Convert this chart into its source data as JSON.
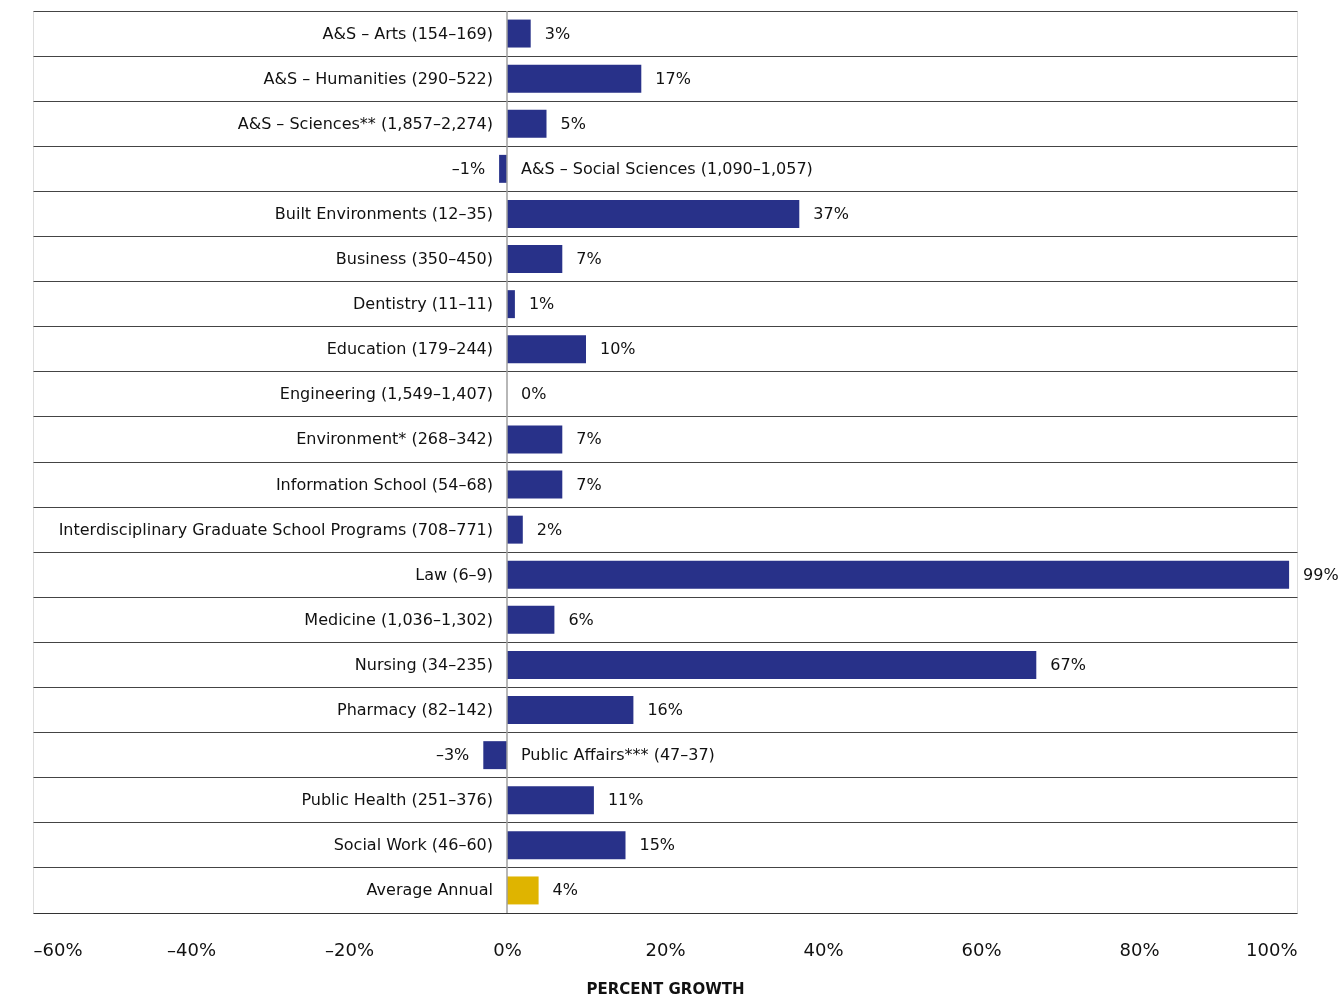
{
  "chart_data": {
    "type": "bar",
    "orientation": "horizontal",
    "xlabel": "PERCENT GROWTH",
    "categories": [
      "A&S – Arts (154–169)",
      "A&S – Humanities (290–522)",
      "A&S – Sciences** (1,857–2,274)",
      "A&S – Social Sciences (1,090–1,057)",
      "Built Environments (12–35)",
      "Business (350–450)",
      "Dentistry (11–11)",
      "Education (179–244)",
      "Engineering (1,549–1,407)",
      "Environment* (268–342)",
      "Information School (54–68)",
      "Interdisciplinary Graduate School Programs (708–771)",
      "Law (6–9)",
      "Medicine (1,036–1,302)",
      "Nursing (34–235)",
      "Pharmacy (82–142)",
      "Public Affairs*** (47–37)",
      "Public Health (251–376)",
      "Social Work (46–60)",
      "Average Annual"
    ],
    "values": [
      3,
      17,
      5,
      -1,
      37,
      7,
      1,
      10,
      0,
      7,
      7,
      2,
      99,
      6,
      67,
      16,
      -3,
      11,
      15,
      4
    ],
    "value_labels": [
      "3%",
      "17%",
      "5%",
      "–1%",
      "37%",
      "7%",
      "1%",
      "10%",
      "0%",
      "7%",
      "7%",
      "2%",
      "99%",
      "6%",
      "67%",
      "16%",
      "–3%",
      "11%",
      "15%",
      "4%"
    ],
    "colors": [
      "#283189",
      "#283189",
      "#283189",
      "#283189",
      "#283189",
      "#283189",
      "#283189",
      "#283189",
      "#283189",
      "#283189",
      "#283189",
      "#283189",
      "#283189",
      "#283189",
      "#283189",
      "#283189",
      "#283189",
      "#283189",
      "#283189",
      "#dfb400"
    ],
    "xlim": [
      -60,
      100
    ],
    "xticks": [
      {
        "value": -60,
        "label": "–60%"
      },
      {
        "value": -40,
        "label": "–40%"
      },
      {
        "value": -20,
        "label": "–20%"
      },
      {
        "value": 0,
        "label": "0%"
      },
      {
        "value": 20,
        "label": "20%"
      },
      {
        "value": 40,
        "label": "40%"
      },
      {
        "value": 60,
        "label": "60%"
      },
      {
        "value": 80,
        "label": "80%"
      },
      {
        "value": 100,
        "label": "100%"
      }
    ],
    "ref_lines": [
      {
        "axis": "x",
        "value": 0,
        "color": "#a0a0a0"
      }
    ],
    "grid": "y"
  }
}
